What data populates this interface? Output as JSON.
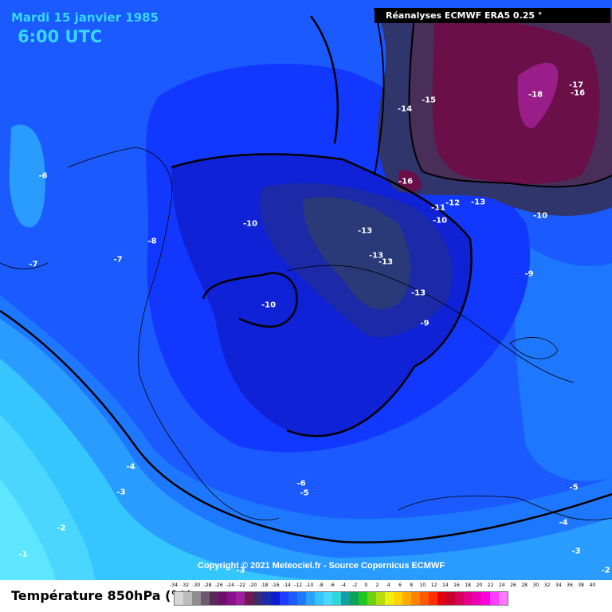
{
  "header": {
    "date": "Mardi 15 janvier 1985",
    "time": "6:00 UTC",
    "source_box": "Réanalyses ECMWF ERA5 0.25 °",
    "copyright": "Copyright © 2021 Meteociel.fr - Source Copernicus ECMWF"
  },
  "map_labels": [
    "-6",
    "-7",
    "-7",
    "-8",
    "-10",
    "-10",
    "-13",
    "-13",
    "-13",
    "-13",
    "-9",
    "-9",
    "-10",
    "-10",
    "-11",
    "-12",
    "-13",
    "-16",
    "-14",
    "-15",
    "-18",
    "-17",
    "-16",
    "-4",
    "-3",
    "-2",
    "-1",
    "-6",
    "-5",
    "-3",
    "-5",
    "-4",
    "-3",
    "-2"
  ],
  "legend": {
    "title": "Température 850hPa (°C)",
    "ticks": [
      "-34",
      "-32",
      "-30",
      "-28",
      "-26",
      "-24",
      "-22",
      "-20",
      "-18",
      "-16",
      "-14",
      "-12",
      "-10",
      "-8",
      "-6",
      "-4",
      "-2",
      "0",
      "2",
      "4",
      "6",
      "8",
      "10",
      "12",
      "14",
      "16",
      "18",
      "20",
      "22",
      "24",
      "26",
      "28",
      "30",
      "32",
      "34",
      "36",
      "38",
      "40"
    ],
    "colors": [
      "#d6d6d6",
      "#bcbcbc",
      "#8e8e8e",
      "#6c5b6c",
      "#5a2a5a",
      "#6e0f6e",
      "#8a0f8a",
      "#9e1e9e",
      "#701a50",
      "#3a2b6d",
      "#1a2aa8",
      "#0f1bd0",
      "#1e3cff",
      "#1a5aff",
      "#1e78ff",
      "#2aa0ff",
      "#35c6ff",
      "#4ad6ff",
      "#2ed7d7",
      "#14a0a0",
      "#0fa05a",
      "#1ec81e",
      "#6ed20f",
      "#b4dc0f",
      "#f0f00f",
      "#ffd200",
      "#ffaa00",
      "#ff8200",
      "#ff5a00",
      "#ff2d00",
      "#e6000f",
      "#c8002d",
      "#d7005a",
      "#e6008c",
      "#f000b4",
      "#ff00dc",
      "#ff3cff",
      "#ff78ff"
    ]
  }
}
